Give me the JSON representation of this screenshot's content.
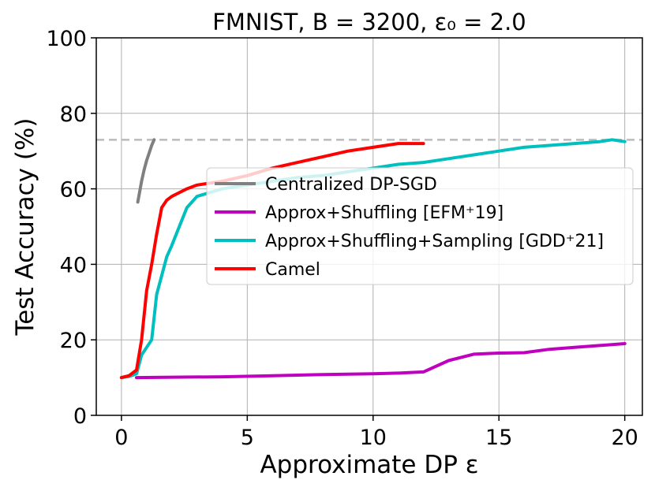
{
  "chart_data": {
    "type": "line",
    "title": "FMNIST, B = 3200, ε₀ = 2.0",
    "xlabel": "Approximate DP ε",
    "ylabel": "Test Accuracy (%)",
    "xlim": [
      -1,
      20.7
    ],
    "ylim": [
      0,
      100
    ],
    "xticks": [
      "0",
      "5",
      "10",
      "15",
      "20"
    ],
    "yticks": [
      "0",
      "20",
      "40",
      "60",
      "80",
      "100"
    ],
    "grid": true,
    "legend_position": "right-middle",
    "reference_line": {
      "y": 73,
      "color": "#bbbbbb",
      "style": "dashed"
    },
    "series": [
      {
        "name": "Centralized DP-SGD",
        "color": "#808080",
        "x": [
          0.65,
          0.72,
          0.8,
          0.9,
          1.0,
          1.1,
          1.2,
          1.3
        ],
        "y": [
          56.5,
          59,
          62,
          65,
          67.5,
          69.5,
          71.5,
          73
        ]
      },
      {
        "name": "Approx+Shuffling [EFM⁺19]",
        "color": "#bf00bf",
        "x": [
          0.6,
          2,
          4,
          6,
          8,
          10,
          11,
          12,
          13,
          14,
          15,
          16,
          17,
          18,
          19,
          20
        ],
        "y": [
          10,
          10.1,
          10.2,
          10.5,
          10.8,
          11,
          11.2,
          11.5,
          14.5,
          16.2,
          16.5,
          16.6,
          17.5,
          18,
          18.5,
          19
        ]
      },
      {
        "name": "Approx+Shuffling+Sampling [GDD⁺21]",
        "color": "#00bfbf",
        "x": [
          0,
          0.3,
          0.6,
          0.8,
          1.0,
          1.2,
          1.4,
          1.6,
          1.8,
          2.0,
          2.3,
          2.6,
          3.0,
          3.5,
          4.0,
          4.5,
          5.0,
          6.0,
          7.0,
          8.0,
          9.0,
          10,
          11,
          12,
          13,
          14,
          15,
          16,
          17,
          18,
          19,
          19.5,
          20
        ],
        "y": [
          10,
          10.3,
          11,
          16,
          18,
          20,
          32,
          37,
          42,
          45,
          50,
          55,
          58,
          59,
          60,
          60.5,
          61,
          62,
          63,
          63.5,
          64.5,
          65.5,
          66.5,
          67,
          68,
          69,
          70,
          71,
          71.5,
          72,
          72.5,
          73,
          72.5
        ]
      },
      {
        "name": "Camel",
        "color": "#ff0000",
        "x": [
          0,
          0.3,
          0.6,
          0.8,
          1.0,
          1.2,
          1.4,
          1.6,
          1.8,
          2.0,
          2.3,
          2.6,
          3.0,
          4.0,
          5.0,
          6.0,
          7.0,
          8.0,
          9.0,
          10,
          11,
          12
        ],
        "y": [
          10,
          10.5,
          12,
          20,
          33,
          40,
          48,
          55,
          57,
          58,
          59,
          60,
          61,
          62,
          63.5,
          65.5,
          67,
          68.5,
          70,
          71,
          72,
          72
        ]
      }
    ]
  }
}
